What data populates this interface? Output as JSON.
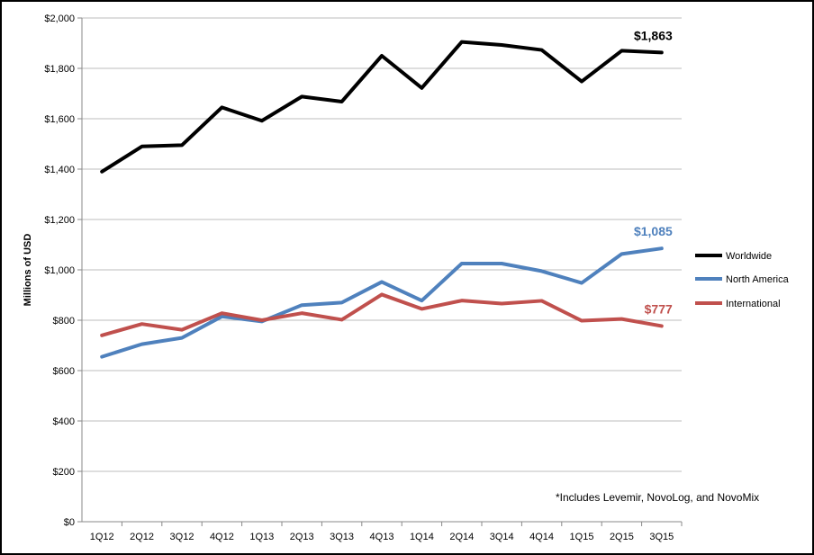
{
  "chart_data": {
    "type": "line",
    "title": "",
    "xlabel": "",
    "ylabel": "Millions of USD",
    "categories": [
      "1Q12",
      "2Q12",
      "3Q12",
      "4Q12",
      "1Q13",
      "2Q13",
      "3Q13",
      "4Q13",
      "1Q14",
      "2Q14",
      "3Q14",
      "4Q14",
      "1Q15",
      "2Q15",
      "3Q15"
    ],
    "ylim": [
      0,
      2000
    ],
    "yticks": [
      "$0",
      "$200",
      "$400",
      "$600",
      "$800",
      "$1,000",
      "$1,200",
      "$1,400",
      "$1,600",
      "$1,800",
      "$2,000"
    ],
    "series": [
      {
        "name": "Worldwide",
        "color": "#000000",
        "values": [
          1390,
          1490,
          1495,
          1645,
          1592,
          1688,
          1668,
          1850,
          1722,
          1905,
          1893,
          1873,
          1748,
          1870,
          1863
        ],
        "end_label": "$1,863"
      },
      {
        "name": "North America",
        "color": "#4f81bd",
        "values": [
          655,
          705,
          730,
          815,
          795,
          860,
          870,
          952,
          878,
          1025,
          1025,
          995,
          948,
          1063,
          1085
        ],
        "end_label": "$1,085"
      },
      {
        "name": "International",
        "color": "#c0504d",
        "values": [
          740,
          785,
          762,
          828,
          800,
          828,
          802,
          902,
          845,
          878,
          866,
          877,
          798,
          805,
          777
        ],
        "end_label": "$777"
      }
    ],
    "legend_position": "right",
    "grid": "horizontal",
    "annotation": "*Includes Levemir, NovoLog, and NovoMix"
  }
}
